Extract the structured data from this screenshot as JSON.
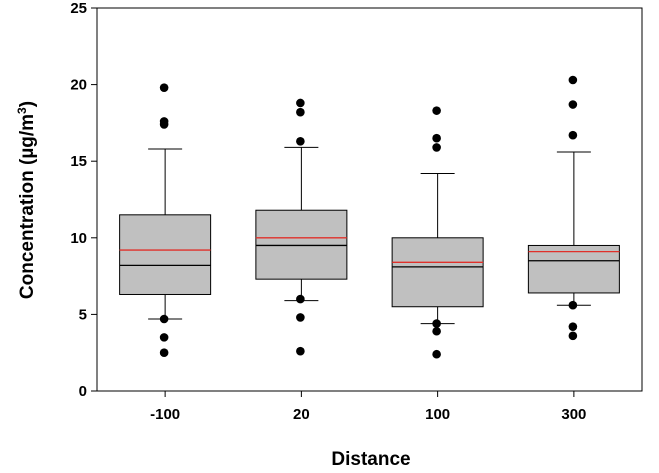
{
  "chart_data": {
    "type": "box",
    "xlabel": "Distance",
    "ylabel_main": "Concentration (µg/m",
    "ylabel_sup": "3",
    "ylabel_close": ")",
    "ylim": [
      0,
      25
    ],
    "yticks": [
      0,
      5,
      10,
      15,
      20,
      25
    ],
    "categories": [
      "-100",
      "20",
      "100",
      "300"
    ],
    "grid": false,
    "colors": {
      "box_fill": "#c0c0c0",
      "mean_line": "#e0302a",
      "median_line": "#000000",
      "outlier": "#000000"
    },
    "boxes": [
      {
        "category": "-100",
        "whisker_low": 4.7,
        "q1": 6.3,
        "median": 8.2,
        "mean": 9.2,
        "q3": 11.5,
        "whisker_high": 15.8,
        "outliers": [
          19.8,
          17.6,
          17.4,
          4.7,
          3.5,
          2.5
        ]
      },
      {
        "category": "20",
        "whisker_low": 5.9,
        "q1": 7.3,
        "median": 9.5,
        "mean": 10.0,
        "q3": 11.8,
        "whisker_high": 15.9,
        "outliers": [
          18.8,
          18.2,
          16.3,
          6.0,
          4.8,
          2.6
        ]
      },
      {
        "category": "100",
        "whisker_low": 4.4,
        "q1": 5.5,
        "median": 8.1,
        "mean": 8.4,
        "q3": 10.0,
        "whisker_high": 14.2,
        "outliers": [
          18.3,
          16.5,
          15.9,
          4.4,
          3.9,
          2.4
        ]
      },
      {
        "category": "300",
        "whisker_low": 5.6,
        "q1": 6.4,
        "median": 8.5,
        "mean": 9.1,
        "q3": 9.5,
        "whisker_high": 15.6,
        "outliers": [
          20.3,
          18.7,
          16.7,
          5.6,
          4.2,
          3.6
        ]
      }
    ]
  }
}
